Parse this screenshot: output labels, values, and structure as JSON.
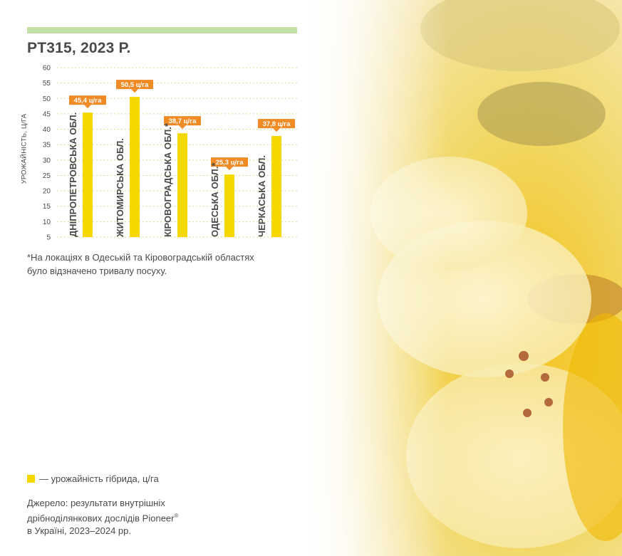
{
  "title": "PT315, 2023 Р.",
  "footnote": "*На локаціях в Одеській та Кіровоградській областях було відзначено тривалу посуху.",
  "legend": {
    "label": "— урожайність гібрида, ц/га"
  },
  "source": {
    "line1": "Джерело: результати внутрішніх",
    "line2_text": "дрібноділянкових дослідів Pioneer",
    "line2_mark": "®",
    "line3": "в Україні, 2023–2024 рр."
  },
  "colors": {
    "bar": "#f5d800",
    "label_bg": "#f08a24",
    "grid": "#dcdc96",
    "header_bar": "#c3e0a6"
  },
  "chart_data": {
    "type": "bar",
    "ylabel": "УРОЖАЙНІСТЬ, Ц/ГА",
    "ylim": [
      5,
      60
    ],
    "yticks": [
      5,
      10,
      15,
      20,
      25,
      30,
      35,
      40,
      45,
      50,
      55,
      60
    ],
    "grid": true,
    "categories": [
      "ДНІПРОПЕТРОВСЬКА ОБЛ.",
      "ЖИТОМИРСЬКА ОБЛ.",
      "КІРОВОГРАДСЬКА ОБЛ.*",
      "ОДЕСЬКА ОБЛ.*",
      "ЧЕРКАСЬКА ОБЛ."
    ],
    "values": [
      45.4,
      50.5,
      38.7,
      25.3,
      37.8
    ],
    "value_labels": [
      "45,4 ц/га",
      "50,5 ц/га",
      "38,7 ц/га",
      "25,3 ц/га",
      "37,8 ц/га"
    ]
  }
}
